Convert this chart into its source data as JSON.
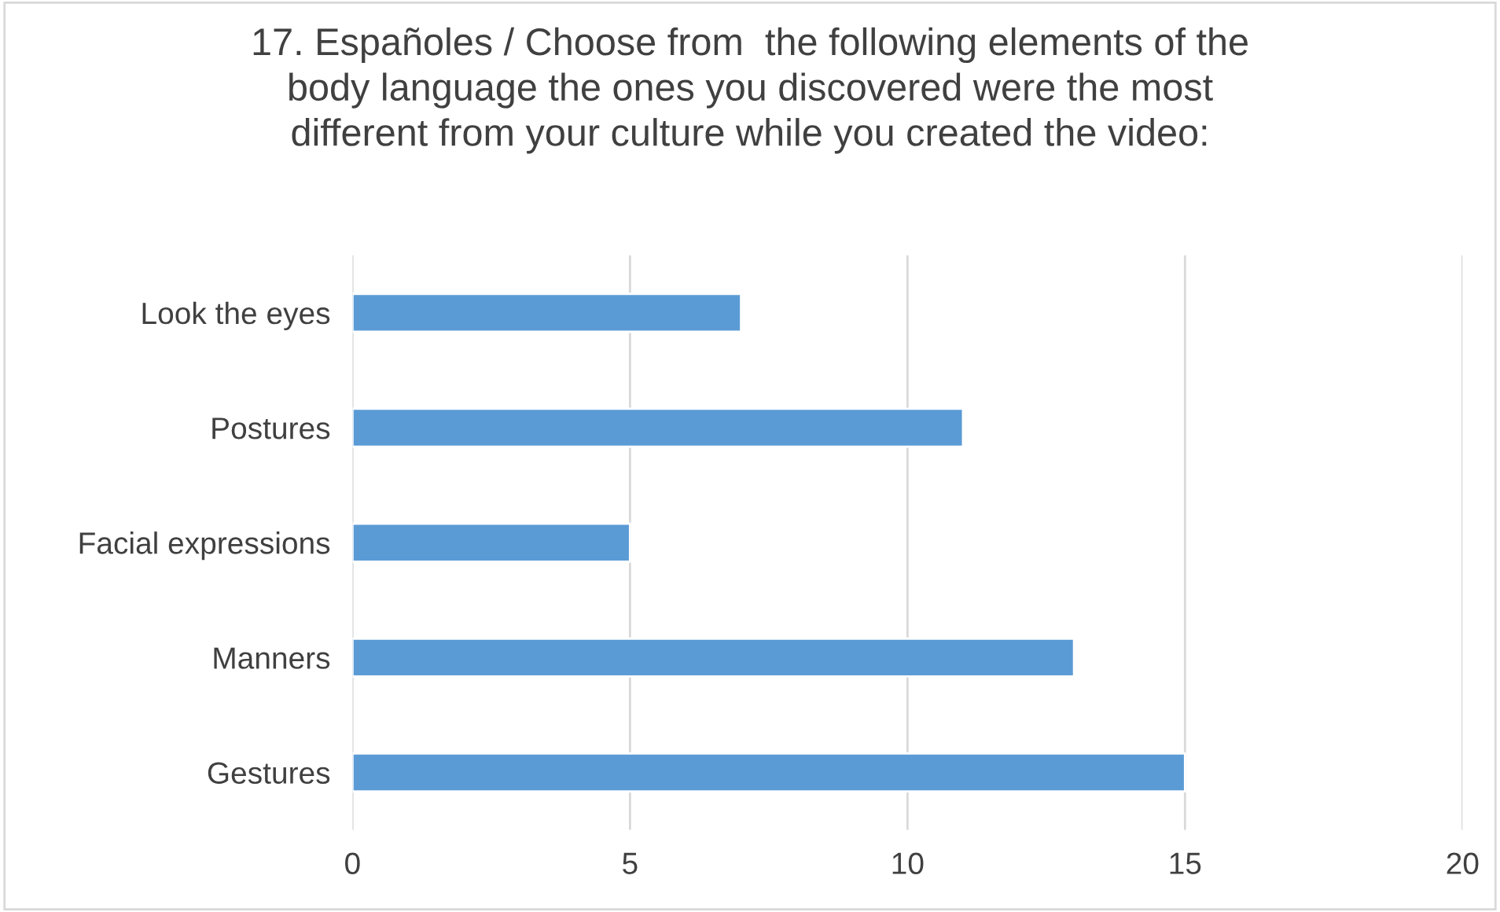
{
  "chart_data": {
    "type": "bar",
    "orientation": "horizontal",
    "title": "17. Españoles / Choose from  the following elements of the\nbody language the ones you discovered were the most\ndifferent from your culture while you created the video:",
    "categories": [
      "Look the eyes",
      "Postures",
      "Facial expressions",
      "Manners",
      "Gestures"
    ],
    "values": [
      7,
      11,
      5,
      13,
      15
    ],
    "color": "#5b9bd5",
    "xlim": [
      0,
      20
    ],
    "xticks": [
      0,
      5,
      10,
      15,
      20
    ],
    "grid": "x"
  }
}
